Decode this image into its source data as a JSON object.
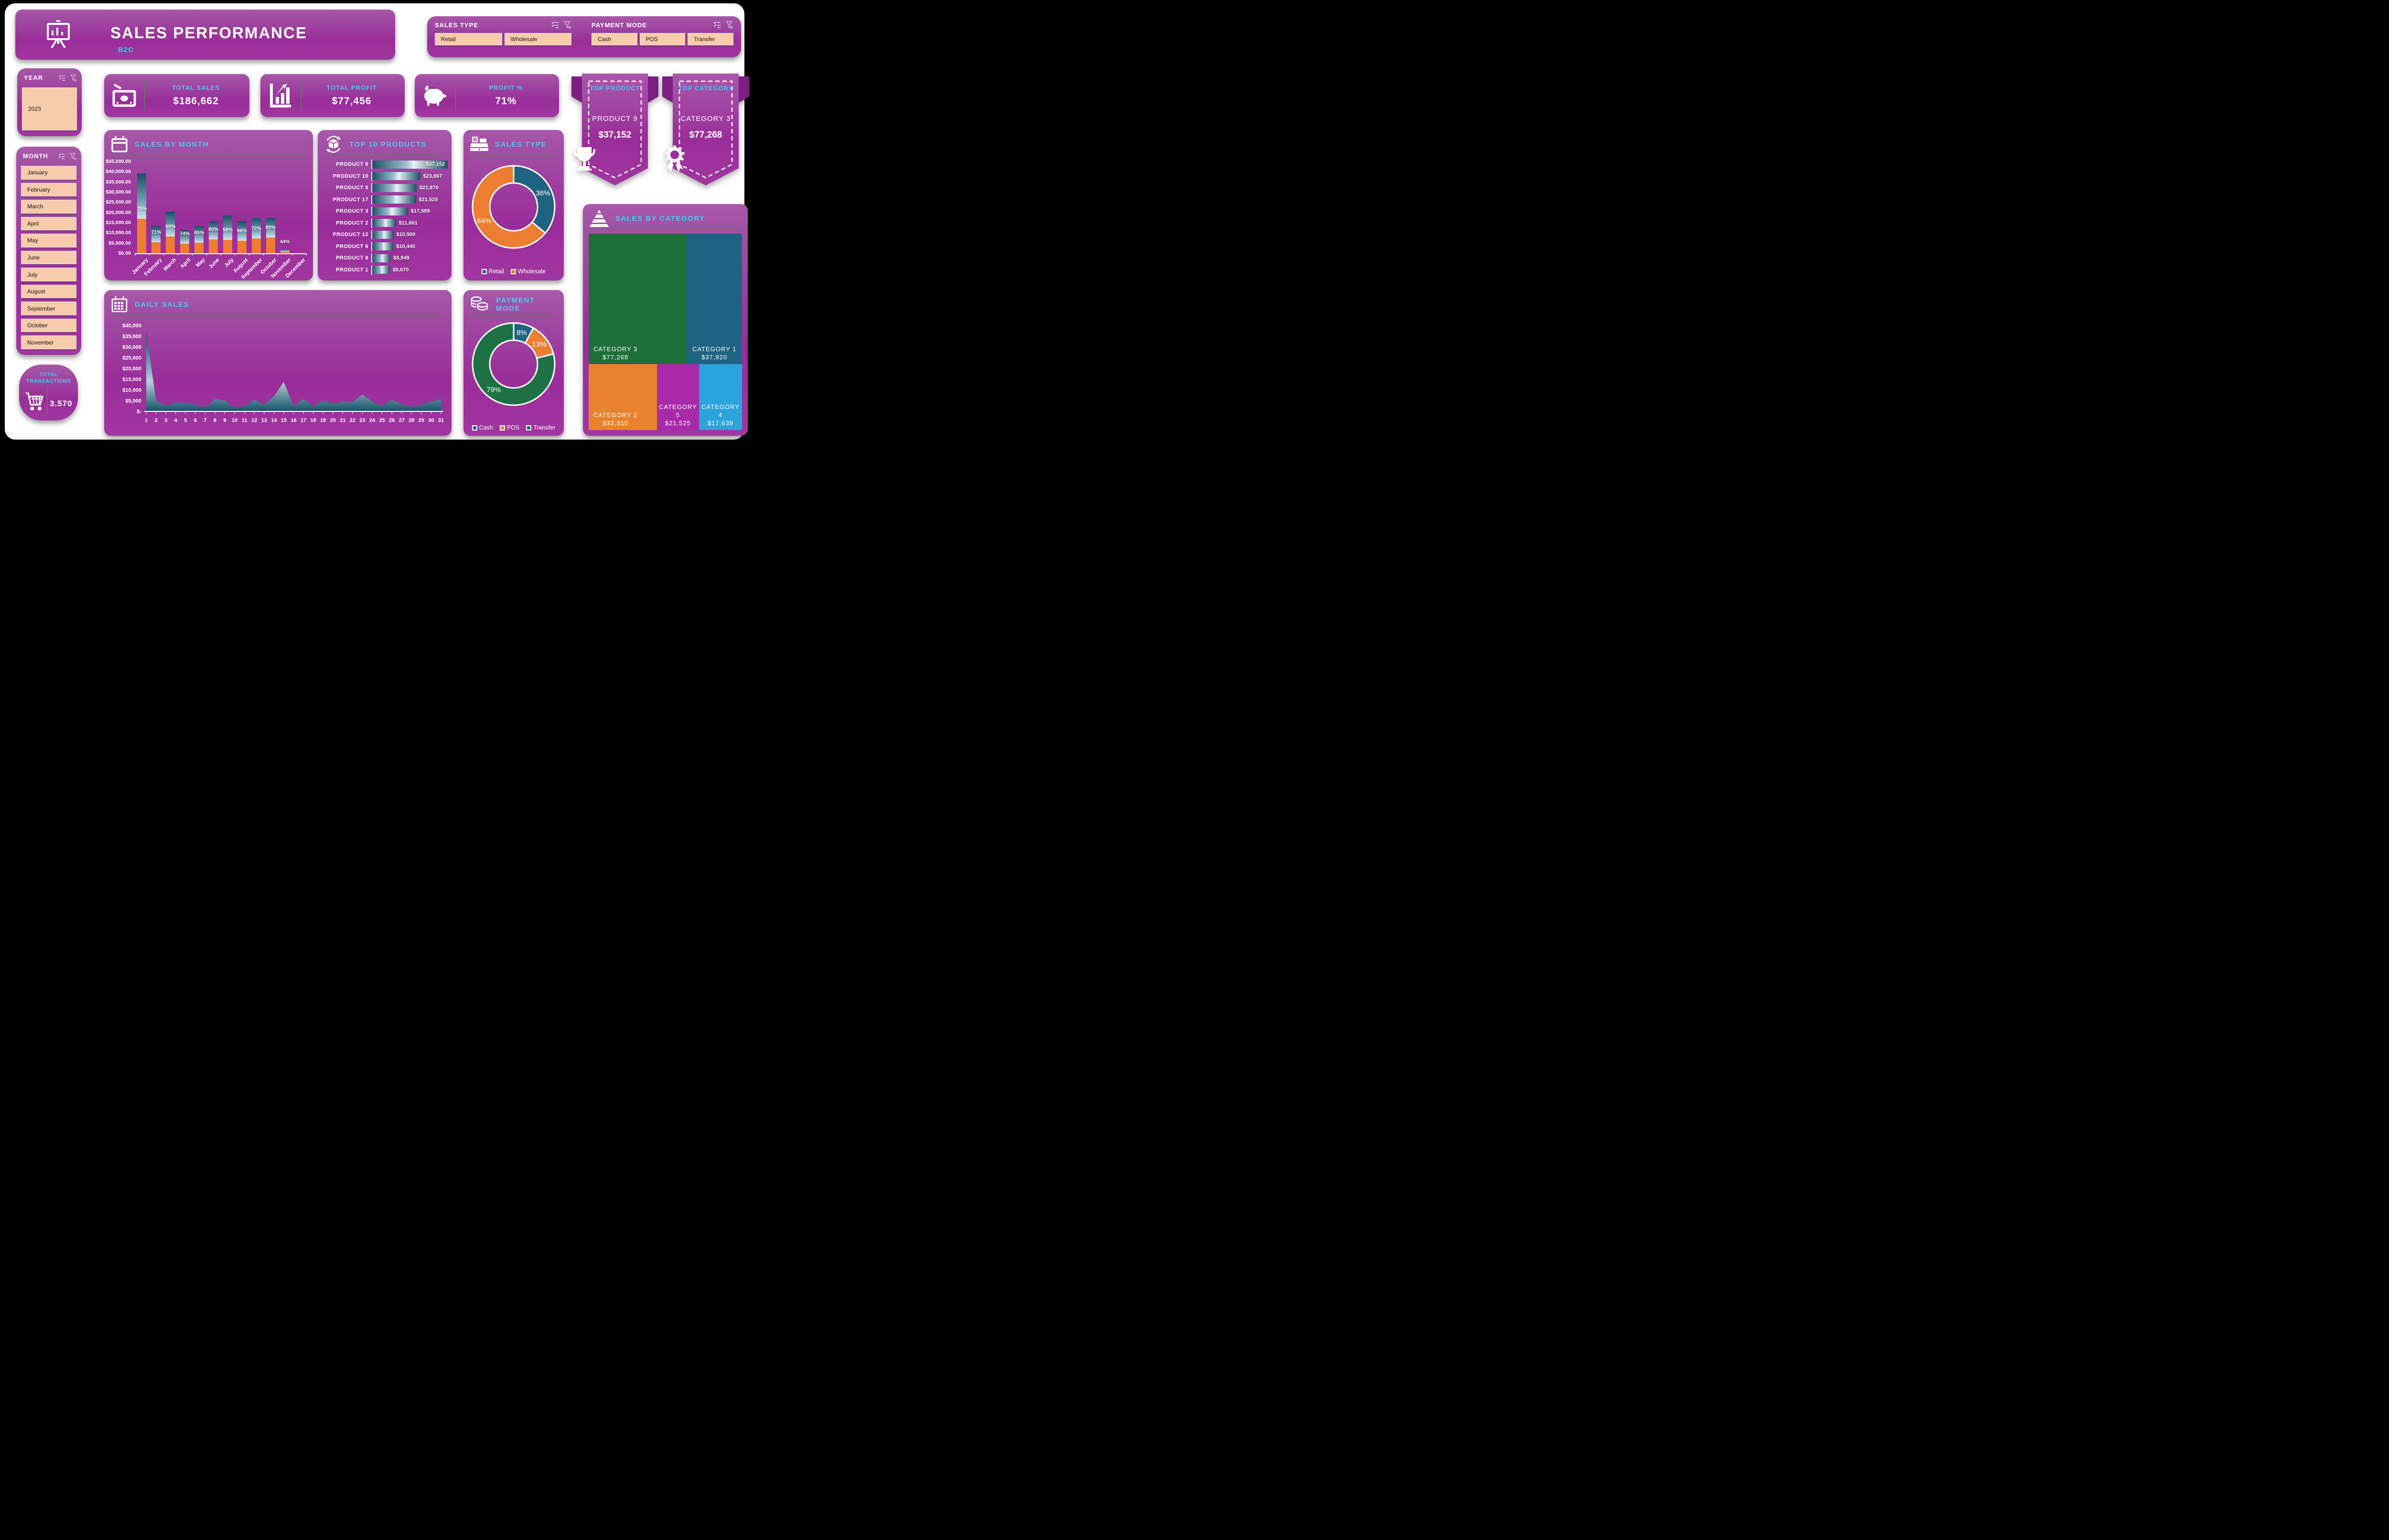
{
  "header": {
    "title": "SALES PERFORMANCE",
    "subtitle": "B2C"
  },
  "slicers": {
    "sales_type": {
      "label": "SALES TYPE",
      "options": [
        "Retail",
        "Wholesale"
      ]
    },
    "payment_mode": {
      "label": "PAYMENT MODE",
      "options": [
        "Cash",
        "POS",
        "Transfer"
      ]
    },
    "year": {
      "label": "YEAR",
      "options": [
        "2023"
      ]
    },
    "month": {
      "label": "MONTH",
      "options": [
        "January",
        "February",
        "March",
        "April",
        "May",
        "June",
        "July",
        "August",
        "September",
        "October",
        "November"
      ]
    }
  },
  "kpis": {
    "total_sales": {
      "label": "TOTAL SALES",
      "value": "$186,662"
    },
    "total_profit": {
      "label": "TOTAL PROFIT",
      "value": "$77,456"
    },
    "profit_pct": {
      "label": "PROFIT %",
      "value": "71%"
    }
  },
  "ribbons": {
    "top_product": {
      "label": "TOP PRODUCT",
      "name": "PRODUCT 9",
      "value": "$37,152"
    },
    "top_category": {
      "label": "TOP CATEGORY",
      "name": "CATEGORY 3",
      "value": "$77,268"
    }
  },
  "total_transactions": {
    "label": "TOTAL TRANSACTIONS",
    "value": "3.570"
  },
  "colors": {
    "accent_cyan": "#4dc9f5",
    "orange": "#ed7d31",
    "teal": "#1f6382",
    "green": "#1e7145",
    "peach": "#f8cbad",
    "purple_dark": "#992d99",
    "light_blue": "#2ba3db"
  },
  "chart_data": [
    {
      "id": "sales_by_month",
      "type": "bar",
      "title": "SALES BY MONTH",
      "categories": [
        "January",
        "February",
        "March",
        "April",
        "May",
        "June",
        "July",
        "August",
        "September",
        "October",
        "November",
        "December"
      ],
      "series": [
        {
          "name": "orange_segment",
          "values": [
            16800,
            5500,
            8300,
            4800,
            5100,
            6900,
            6500,
            6200,
            7200,
            7700,
            800,
            0
          ]
        },
        {
          "name": "teal_segment_total_sales",
          "values": [
            39200,
            13300,
            20500,
            11300,
            13400,
            15700,
            18500,
            15600,
            17300,
            17400,
            2200,
            0
          ]
        }
      ],
      "pct_labels": [
        "75%",
        "71%",
        "69%",
        "74%",
        "65%",
        "80%",
        "58%",
        "66%",
        "72%",
        "80%",
        "44%",
        ""
      ],
      "ylim": [
        0,
        45000
      ],
      "y_ticks": [
        "$45,000.00",
        "$40,000.00",
        "$35,000.00",
        "$30,000.00",
        "$25,000.00",
        "$20,000.00",
        "$15,000.00",
        "$10,000.00",
        "$5,000.00",
        "$0.00"
      ],
      "legend_position": "none",
      "grid": false
    },
    {
      "id": "top_10_products",
      "type": "bar",
      "title": "TOP 10 PRODUCTS",
      "orientation": "horizontal",
      "categories": [
        "PRODUCT 9",
        "PRODUCT 10",
        "PRODUCT 5",
        "PRODUCT 17",
        "PRODUCT 3",
        "PRODUCT 2",
        "PRODUCT 12",
        "PRODUCT 6",
        "PRODUCT 8",
        "PRODUCT 1"
      ],
      "values": [
        37152,
        23667,
        21870,
        21525,
        17589,
        11661,
        10500,
        10440,
        8949,
        8670
      ],
      "value_labels": [
        "$37,152",
        "$23,667",
        "$21,870",
        "$21,525",
        "$17,589",
        "$11,661",
        "$10,500",
        "$10,440",
        "$8,949",
        "$8,670"
      ],
      "xlim": [
        0,
        37152
      ],
      "grid": false
    },
    {
      "id": "sales_type",
      "type": "pie",
      "title": "SALES TYPE",
      "labels": [
        "Retail",
        "Wholesale"
      ],
      "values": [
        36,
        64
      ],
      "pct_labels": [
        "36%",
        "64%"
      ],
      "colors": [
        "#1f6382",
        "#ed7d31"
      ],
      "donut": true,
      "legend_position": "bottom"
    },
    {
      "id": "daily_sales",
      "type": "area",
      "title": "DAILY SALES",
      "x": [
        1,
        2,
        3,
        4,
        5,
        6,
        7,
        8,
        9,
        10,
        11,
        12,
        13,
        14,
        15,
        16,
        17,
        18,
        19,
        20,
        21,
        22,
        23,
        24,
        25,
        26,
        27,
        28,
        29,
        30,
        31
      ],
      "values": [
        37100,
        5000,
        2550,
        4200,
        3900,
        3200,
        1650,
        5700,
        5100,
        1500,
        2550,
        5450,
        3200,
        7000,
        13700,
        2300,
        5700,
        2550,
        5000,
        3650,
        4550,
        4350,
        7900,
        4550,
        2550,
        5450,
        3450,
        2100,
        3000,
        4550,
        5700
      ],
      "ylim": [
        0,
        40000
      ],
      "y_ticks": [
        "$40,000",
        "$35,000",
        "$30,000",
        "$25,000",
        "$20,000",
        "$15,000",
        "$10,000",
        "$5,000",
        "$-"
      ],
      "grid": false,
      "legend_position": "none"
    },
    {
      "id": "payment_mode",
      "type": "pie",
      "title": "PAYMENT MODE",
      "labels": [
        "Cash",
        "POS",
        "Transfer"
      ],
      "values": [
        8,
        13,
        79
      ],
      "pct_labels": [
        "8%",
        "13%",
        "79%"
      ],
      "colors": [
        "#1f6382",
        "#ed7d31",
        "#1e7145"
      ],
      "donut": true,
      "legend_position": "bottom"
    },
    {
      "id": "sales_by_category",
      "type": "heatmap",
      "subtype": "treemap",
      "title": "SALES BY CATEGORY",
      "items": [
        {
          "name": "CATEGORY 3",
          "value": 77268,
          "label": "$77,268",
          "color": "#1e6e3a",
          "x": 0,
          "y": 0,
          "w": 64,
          "h": 66.5,
          "align": "left"
        },
        {
          "name": "CATEGORY 1",
          "value": 37920,
          "label": "$37,920",
          "color": "#1f6382",
          "x": 64,
          "y": 0,
          "w": 36,
          "h": 66.5,
          "align": "center"
        },
        {
          "name": "CATEGORY 2",
          "value": 32310,
          "label": "$32,310",
          "color": "#e8822e",
          "x": 0,
          "y": 66.5,
          "w": 44.5,
          "h": 33.5,
          "align": "left"
        },
        {
          "name": "CATEGORY 5",
          "value": 21525,
          "label": "$21,525",
          "color": "#a82aa8",
          "x": 44.5,
          "y": 66.5,
          "w": 27.5,
          "h": 33.5,
          "align": "center"
        },
        {
          "name": "CATEGORY 4",
          "value": 17639,
          "label": "$17,639",
          "color": "#2ba3db",
          "x": 72,
          "y": 66.5,
          "w": 28,
          "h": 33.5,
          "align": "center"
        }
      ]
    }
  ]
}
